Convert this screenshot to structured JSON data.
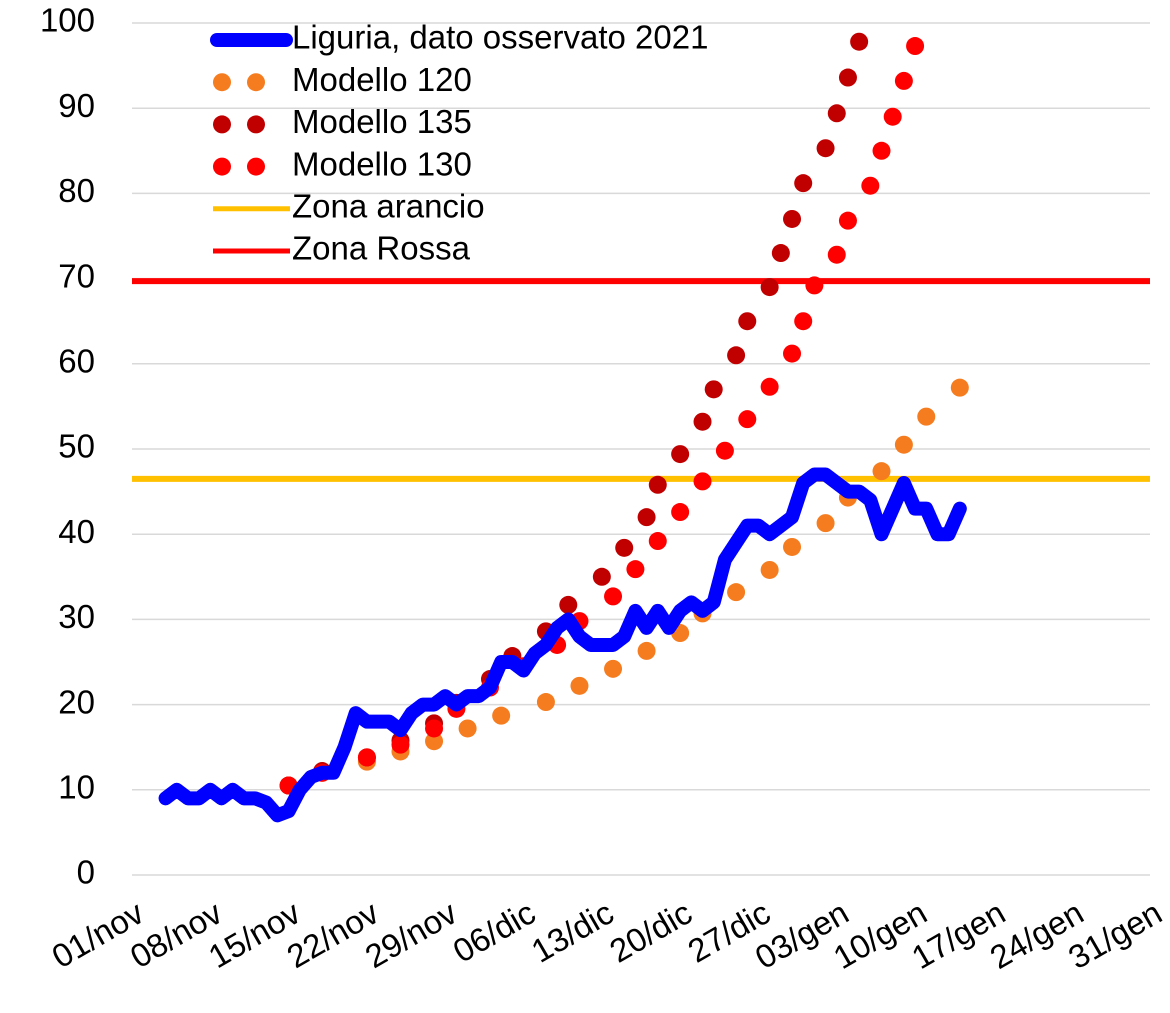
{
  "chart_data": {
    "type": "line",
    "xlim": [
      "01/nov",
      "31/gen"
    ],
    "xticks": [
      "01/nov",
      "08/nov",
      "15/nov",
      "22/nov",
      "29/nov",
      "06/dic",
      "13/dic",
      "20/dic",
      "27/dic",
      "03/gen",
      "10/gen",
      "17/gen",
      "24/gen",
      "31/gen"
    ],
    "ylim": [
      0,
      100
    ],
    "yticks": [
      0,
      10,
      20,
      30,
      40,
      50,
      60,
      70,
      80,
      90,
      100
    ],
    "grid": true,
    "legend": "top-left",
    "series": [
      {
        "name": "Liguria, dato osservato 2021",
        "color": "#0000ff",
        "style": "line",
        "x": [
          "04/nov",
          "05/nov",
          "06/nov",
          "07/nov",
          "08/nov",
          "09/nov",
          "10/nov",
          "11/nov",
          "12/nov",
          "13/nov",
          "14/nov",
          "15/nov",
          "16/nov",
          "17/nov",
          "18/nov",
          "19/nov",
          "20/nov",
          "21/nov",
          "22/nov",
          "23/nov",
          "24/nov",
          "25/nov",
          "26/nov",
          "27/nov",
          "28/nov",
          "29/nov",
          "30/nov",
          "01/dic",
          "02/dic",
          "03/dic",
          "04/dic",
          "05/dic",
          "06/dic",
          "07/dic",
          "08/dic",
          "09/dic",
          "10/dic",
          "11/dic",
          "12/dic",
          "13/dic",
          "14/dic",
          "15/dic",
          "16/dic",
          "17/dic",
          "18/dic",
          "19/dic",
          "20/dic",
          "21/dic",
          "22/dic",
          "23/dic",
          "24/dic",
          "25/dic",
          "26/dic",
          "27/dic",
          "28/dic",
          "29/dic",
          "30/dic",
          "31/dic",
          "01/gen",
          "02/gen",
          "03/gen",
          "04/gen",
          "05/gen",
          "06/gen",
          "07/gen",
          "08/gen",
          "09/gen",
          "10/gen",
          "11/gen",
          "12/gen",
          "13/gen",
          "14/gen"
        ],
        "values": [
          9,
          10,
          9,
          9,
          10,
          9,
          10,
          9,
          9,
          8.5,
          7,
          7.5,
          10,
          11.5,
          12,
          12,
          15,
          19,
          18,
          18,
          18,
          17,
          19,
          20,
          20,
          21,
          20,
          21,
          21,
          22,
          25,
          25,
          24,
          26,
          27,
          29,
          30,
          28,
          27,
          27,
          27,
          28,
          31,
          29,
          31,
          29,
          31,
          32,
          31,
          32,
          37,
          39,
          41,
          41,
          40,
          41,
          42,
          46,
          47,
          47,
          46,
          45,
          45,
          44,
          40,
          43,
          46,
          43,
          43,
          40,
          40,
          43
        ]
      },
      {
        "name": "Modello 120",
        "color": "#f57c1f",
        "style": "dots",
        "x": [
          "15/nov",
          "18/nov",
          "22/nov",
          "25/nov",
          "28/nov",
          "01/dic",
          "04/dic",
          "08/dic",
          "11/dic",
          "14/dic",
          "17/dic",
          "20/dic",
          "22/dic",
          "25/dic",
          "28/dic",
          "30/dic",
          "02/gen",
          "04/gen",
          "07/gen",
          "09/gen",
          "11/gen",
          "14/gen"
        ],
        "values": [
          10.5,
          12,
          13.3,
          14.5,
          15.7,
          17.2,
          18.7,
          20.3,
          22.2,
          24.2,
          26.3,
          28.4,
          30.7,
          33.2,
          35.8,
          38.5,
          41.3,
          44.3,
          47.4,
          50.5,
          53.8,
          57.2
        ]
      },
      {
        "name": "Modello 135",
        "color": "#c00000",
        "style": "dots",
        "x": [
          "15/nov",
          "18/nov",
          "22/nov",
          "25/nov",
          "28/nov",
          "30/nov",
          "03/dic",
          "05/dic",
          "08/dic",
          "10/dic",
          "13/dic",
          "15/dic",
          "17/dic",
          "18/dic",
          "20/dic",
          "22/dic",
          "23/dic",
          "25/dic",
          "26/dic",
          "28/dic",
          "29/dic",
          "30/dic",
          "31/dic",
          "02/gen",
          "03/gen",
          "04/gen",
          "05/gen"
        ],
        "values": [
          10.5,
          12.2,
          13.8,
          15.8,
          17.8,
          20.2,
          23,
          25.7,
          28.6,
          31.7,
          35,
          38.4,
          42,
          45.8,
          49.4,
          53.2,
          57,
          61,
          65,
          69,
          73,
          77,
          81.2,
          85.3,
          89.4,
          93.6,
          97.8
        ]
      },
      {
        "name": "Modello 130",
        "color": "#ff0000",
        "style": "dots",
        "x": [
          "15/nov",
          "18/nov",
          "22/nov",
          "25/nov",
          "28/nov",
          "30/nov",
          "03/dic",
          "06/dic",
          "09/dic",
          "11/dic",
          "14/dic",
          "16/dic",
          "18/dic",
          "20/dic",
          "22/dic",
          "24/dic",
          "26/dic",
          "28/dic",
          "30/dic",
          "31/dic",
          "01/gen",
          "03/gen",
          "04/gen",
          "06/gen",
          "07/gen",
          "08/gen",
          "09/gen",
          "10/gen"
        ],
        "values": [
          10.5,
          12,
          13.8,
          15.3,
          17.2,
          19.5,
          22,
          24.5,
          27,
          29.8,
          32.7,
          35.9,
          39.2,
          42.6,
          46.2,
          49.8,
          53.5,
          57.3,
          61.2,
          65,
          69.2,
          72.8,
          76.8,
          80.9,
          85,
          89,
          93.2,
          97.3
        ]
      },
      {
        "name": "Zona arancio",
        "color": "#ffc000",
        "style": "hline",
        "values": [
          46.5
        ]
      },
      {
        "name": "Zona Rossa",
        "color": "#ff0000",
        "style": "hline",
        "values": [
          69.7
        ]
      }
    ]
  }
}
